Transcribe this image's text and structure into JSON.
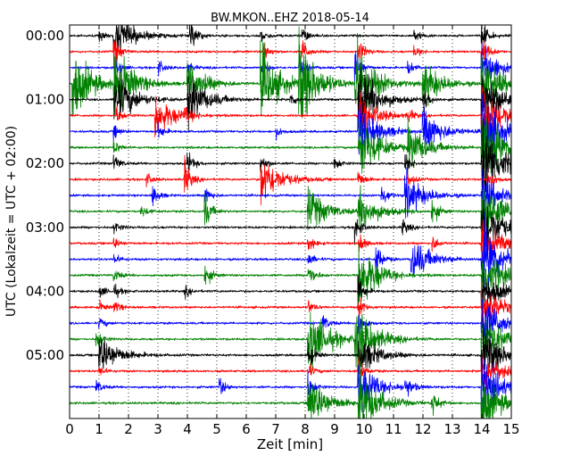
{
  "chart_data": {
    "type": "line",
    "title": "BW.MKON..EHZ 2018-05-14",
    "xlabel": "Zeit  [min]",
    "ylabel": "UTC (Lokalzeit = UTC + 02:00)",
    "xlim": [
      0,
      15
    ],
    "ylim_minutes": [
      0,
      360
    ],
    "y_inverted": true,
    "grid": "vertical dotted at each minute",
    "x_ticks": [
      "0",
      "1",
      "2",
      "3",
      "4",
      "5",
      "6",
      "7",
      "8",
      "9",
      "10",
      "11",
      "12",
      "13",
      "14",
      "15"
    ],
    "y_ticks": [
      {
        "minute": 0,
        "label": "00:00"
      },
      {
        "minute": 60,
        "label": "01:00"
      },
      {
        "minute": 120,
        "label": "02:00"
      },
      {
        "minute": 180,
        "label": "03:00"
      },
      {
        "minute": 240,
        "label": "04:00"
      },
      {
        "minute": 300,
        "label": "05:00"
      }
    ],
    "trace_interval_min": 15,
    "trace_colors": [
      "#000000",
      "#ff0000",
      "#0000ff",
      "#008000"
    ],
    "traces_count": 24,
    "series": [
      {
        "label": "00:00",
        "color": "#000000",
        "events": [
          {
            "t": 1.0,
            "a": 0.4
          },
          {
            "t": 1.5,
            "a": 1.6
          },
          {
            "t": 4.1,
            "a": 1.3
          },
          {
            "t": 6.5,
            "a": 0.5
          },
          {
            "t": 7.9,
            "a": 0.6
          },
          {
            "t": 11.7,
            "a": 0.5
          },
          {
            "t": 14.0,
            "a": 1.0
          }
        ]
      },
      {
        "label": "00:15",
        "color": "#ff0000",
        "events": [
          {
            "t": 1.5,
            "a": 1.0
          },
          {
            "t": 6.6,
            "a": 0.6
          },
          {
            "t": 7.9,
            "a": 0.8
          },
          {
            "t": 9.8,
            "a": 1.0
          },
          {
            "t": 11.7,
            "a": 0.4
          },
          {
            "t": 14.0,
            "a": 1.2
          }
        ]
      },
      {
        "label": "00:30",
        "color": "#0000ff",
        "events": [
          {
            "t": 1.5,
            "a": 0.8
          },
          {
            "t": 3.0,
            "a": 0.6
          },
          {
            "t": 4.0,
            "a": 0.4
          },
          {
            "t": 6.5,
            "a": 0.6
          },
          {
            "t": 7.8,
            "a": 0.9
          },
          {
            "t": 9.7,
            "a": 1.2
          },
          {
            "t": 11.5,
            "a": 0.5
          },
          {
            "t": 14.0,
            "a": 1.5
          }
        ]
      },
      {
        "label": "00:45",
        "color": "#008000",
        "events": [
          {
            "t": 0.1,
            "a": 2.5
          },
          {
            "t": 1.5,
            "a": 2.5
          },
          {
            "t": 4.0,
            "a": 1.5
          },
          {
            "t": 6.5,
            "a": 2.5
          },
          {
            "t": 7.8,
            "a": 3.0
          },
          {
            "t": 9.7,
            "a": 3.0
          },
          {
            "t": 12.0,
            "a": 1.5
          },
          {
            "t": 14.0,
            "a": 2.0
          }
        ]
      },
      {
        "label": "01:00",
        "color": "#000000",
        "events": [
          {
            "t": 1.5,
            "a": 2.0
          },
          {
            "t": 4.0,
            "a": 1.8
          },
          {
            "t": 7.5,
            "a": 0.5
          },
          {
            "t": 9.8,
            "a": 2.5
          },
          {
            "t": 12.0,
            "a": 0.8
          },
          {
            "t": 14.0,
            "a": 2.5
          }
        ]
      },
      {
        "label": "01:15",
        "color": "#ff0000",
        "events": [
          {
            "t": 1.6,
            "a": 0.6
          },
          {
            "t": 2.9,
            "a": 1.5
          },
          {
            "t": 3.9,
            "a": 0.5
          },
          {
            "t": 9.8,
            "a": 1.5
          },
          {
            "t": 11.5,
            "a": 0.4
          },
          {
            "t": 14.0,
            "a": 2.5
          }
        ]
      },
      {
        "label": "01:30",
        "color": "#0000ff",
        "events": [
          {
            "t": 1.5,
            "a": 0.5
          },
          {
            "t": 3.0,
            "a": 0.6
          },
          {
            "t": 7.0,
            "a": 0.4
          },
          {
            "t": 9.8,
            "a": 2.0
          },
          {
            "t": 12.0,
            "a": 1.5
          },
          {
            "t": 14.0,
            "a": 3.0
          }
        ]
      },
      {
        "label": "01:45",
        "color": "#008000",
        "events": [
          {
            "t": 1.5,
            "a": 0.5
          },
          {
            "t": 9.8,
            "a": 2.5
          },
          {
            "t": 11.5,
            "a": 1.5
          },
          {
            "t": 14.0,
            "a": 3.0
          }
        ]
      },
      {
        "label": "02:00",
        "color": "#000000",
        "events": [
          {
            "t": 1.5,
            "a": 0.6
          },
          {
            "t": 4.0,
            "a": 0.8
          },
          {
            "t": 6.5,
            "a": 0.6
          },
          {
            "t": 9.0,
            "a": 0.5
          },
          {
            "t": 11.4,
            "a": 0.8
          },
          {
            "t": 14.0,
            "a": 3.0
          }
        ]
      },
      {
        "label": "02:15",
        "color": "#ff0000",
        "events": [
          {
            "t": 2.6,
            "a": 0.5
          },
          {
            "t": 3.9,
            "a": 1.4
          },
          {
            "t": 6.5,
            "a": 1.8
          },
          {
            "t": 9.8,
            "a": 0.6
          },
          {
            "t": 11.5,
            "a": 0.5
          },
          {
            "t": 14.2,
            "a": 1.0
          }
        ]
      },
      {
        "label": "02:30",
        "color": "#0000ff",
        "events": [
          {
            "t": 2.8,
            "a": 0.8
          },
          {
            "t": 4.6,
            "a": 0.6
          },
          {
            "t": 10.6,
            "a": 0.8
          },
          {
            "t": 11.4,
            "a": 1.5
          },
          {
            "t": 14.0,
            "a": 1.5
          }
        ]
      },
      {
        "label": "02:45",
        "color": "#008000",
        "events": [
          {
            "t": 2.4,
            "a": 0.5
          },
          {
            "t": 4.6,
            "a": 1.2
          },
          {
            "t": 8.1,
            "a": 1.5
          },
          {
            "t": 9.8,
            "a": 1.5
          },
          {
            "t": 12.3,
            "a": 1.0
          },
          {
            "t": 14.0,
            "a": 2.5
          }
        ]
      },
      {
        "label": "03:00",
        "color": "#000000",
        "events": [
          {
            "t": 1.5,
            "a": 0.5
          },
          {
            "t": 9.7,
            "a": 1.0
          },
          {
            "t": 11.3,
            "a": 0.6
          },
          {
            "t": 14.0,
            "a": 2.5
          }
        ]
      },
      {
        "label": "03:15",
        "color": "#ff0000",
        "events": [
          {
            "t": 1.5,
            "a": 0.4
          },
          {
            "t": 8.1,
            "a": 0.6
          },
          {
            "t": 9.8,
            "a": 0.8
          },
          {
            "t": 12.3,
            "a": 0.6
          },
          {
            "t": 14.0,
            "a": 1.5
          }
        ]
      },
      {
        "label": "03:30",
        "color": "#0000ff",
        "events": [
          {
            "t": 1.5,
            "a": 0.4
          },
          {
            "t": 8.1,
            "a": 0.5
          },
          {
            "t": 10.4,
            "a": 1.2
          },
          {
            "t": 11.6,
            "a": 1.5
          },
          {
            "t": 14.0,
            "a": 3.0
          }
        ]
      },
      {
        "label": "03:45",
        "color": "#008000",
        "events": [
          {
            "t": 1.5,
            "a": 0.5
          },
          {
            "t": 4.6,
            "a": 0.8
          },
          {
            "t": 8.1,
            "a": 1.0
          },
          {
            "t": 9.8,
            "a": 2.5
          },
          {
            "t": 14.0,
            "a": 2.0
          }
        ]
      },
      {
        "label": "04:00",
        "color": "#000000",
        "events": [
          {
            "t": 1.0,
            "a": 0.5
          },
          {
            "t": 1.5,
            "a": 0.5
          },
          {
            "t": 3.9,
            "a": 0.4
          },
          {
            "t": 9.8,
            "a": 1.0
          },
          {
            "t": 14.0,
            "a": 1.5
          }
        ]
      },
      {
        "label": "04:15",
        "color": "#ff0000",
        "events": [
          {
            "t": 1.0,
            "a": 0.4
          },
          {
            "t": 1.5,
            "a": 0.5
          },
          {
            "t": 8.1,
            "a": 0.5
          },
          {
            "t": 9.8,
            "a": 0.8
          },
          {
            "t": 14.0,
            "a": 1.5
          }
        ]
      },
      {
        "label": "04:30",
        "color": "#0000ff",
        "events": [
          {
            "t": 1.0,
            "a": 0.4
          },
          {
            "t": 8.6,
            "a": 0.6
          },
          {
            "t": 9.8,
            "a": 1.0
          },
          {
            "t": 14.0,
            "a": 2.0
          }
        ]
      },
      {
        "label": "04:45",
        "color": "#008000",
        "events": [
          {
            "t": 0.9,
            "a": 0.8
          },
          {
            "t": 8.1,
            "a": 2.5
          },
          {
            "t": 9.7,
            "a": 2.5
          },
          {
            "t": 14.0,
            "a": 2.0
          }
        ]
      },
      {
        "label": "05:00",
        "color": "#000000",
        "events": [
          {
            "t": 1.0,
            "a": 1.5
          },
          {
            "t": 8.1,
            "a": 1.0
          },
          {
            "t": 9.8,
            "a": 1.5
          },
          {
            "t": 14.0,
            "a": 2.0
          }
        ]
      },
      {
        "label": "05:15",
        "color": "#ff0000",
        "events": [
          {
            "t": 1.0,
            "a": 0.4
          },
          {
            "t": 8.1,
            "a": 0.5
          },
          {
            "t": 9.8,
            "a": 0.8
          },
          {
            "t": 14.0,
            "a": 1.5
          }
        ]
      },
      {
        "label": "05:30",
        "color": "#0000ff",
        "events": [
          {
            "t": 0.9,
            "a": 0.5
          },
          {
            "t": 5.1,
            "a": 0.6
          },
          {
            "t": 8.1,
            "a": 1.0
          },
          {
            "t": 9.8,
            "a": 2.0
          },
          {
            "t": 11.4,
            "a": 0.8
          },
          {
            "t": 14.0,
            "a": 2.0
          }
        ]
      },
      {
        "label": "05:45",
        "color": "#008000",
        "events": [
          {
            "t": 8.1,
            "a": 2.0
          },
          {
            "t": 9.8,
            "a": 2.5
          },
          {
            "t": 12.3,
            "a": 1.0
          },
          {
            "t": 14.0,
            "a": 2.0
          }
        ]
      }
    ]
  }
}
